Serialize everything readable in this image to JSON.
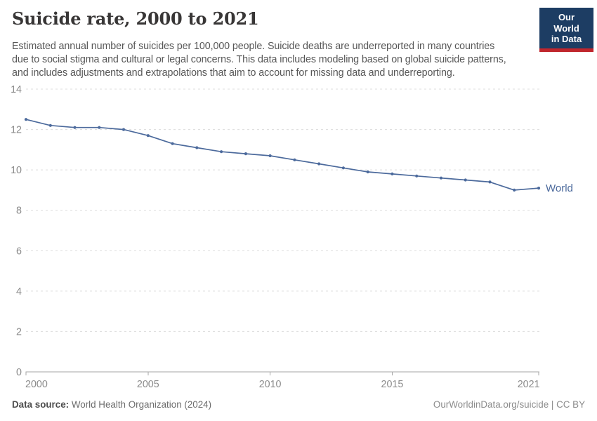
{
  "header": {
    "title": "Suicide rate, 2000 to 2021",
    "subtitle_lines": [
      "Estimated annual number of suicides per 100,000 people. Suicide deaths are underreported in many countries",
      "due to social stigma and cultural or legal concerns. This data includes modeling based on global suicide patterns,",
      "and includes adjustments and extrapolations that aim to account for missing data and underreporting."
    ]
  },
  "logo": {
    "line1": "Our World",
    "line2": "in Data",
    "bg_color": "#1d3d63",
    "accent_color": "#c0262d"
  },
  "chart_data": {
    "type": "line",
    "title": "Suicide rate, 2000 to 2021",
    "x": [
      2000,
      2001,
      2002,
      2003,
      2004,
      2005,
      2006,
      2007,
      2008,
      2009,
      2010,
      2011,
      2012,
      2013,
      2014,
      2015,
      2016,
      2017,
      2018,
      2019,
      2020,
      2021
    ],
    "series": [
      {
        "name": "World",
        "color": "#4c6a9c",
        "values": [
          12.5,
          12.2,
          12.1,
          12.1,
          12.0,
          11.7,
          11.3,
          11.1,
          10.9,
          10.8,
          10.7,
          10.5,
          10.3,
          10.1,
          9.9,
          9.8,
          9.7,
          9.6,
          9.5,
          9.4,
          9.0,
          9.1
        ]
      }
    ],
    "xlabel": "",
    "ylabel": "",
    "ylim": [
      0,
      14
    ],
    "xlim": [
      2000,
      2021
    ],
    "yticks": [
      0,
      2,
      4,
      6,
      8,
      10,
      12,
      14
    ],
    "xtick_labels": [
      2000,
      2005,
      2010,
      2015,
      2021
    ],
    "grid": "horizontal-dashed",
    "legend": "end-of-line-label"
  },
  "footer": {
    "data_source_label": "Data source:",
    "data_source_value": " World Health Organization (2024)",
    "credit": "OurWorldinData.org/suicide | CC BY"
  }
}
